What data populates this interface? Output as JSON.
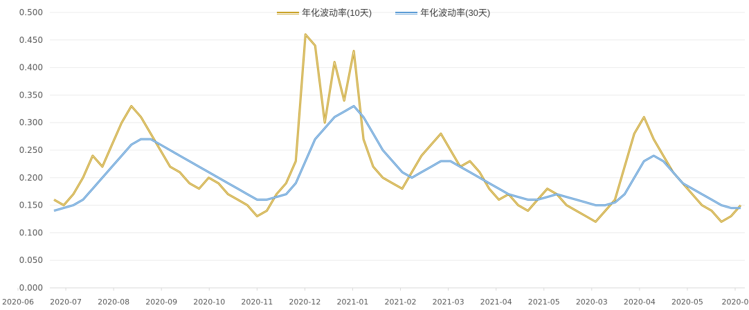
{
  "chart_data": {
    "type": "line",
    "title": "",
    "xlabel": "",
    "ylabel": "",
    "ylim": [
      0,
      0.5
    ],
    "y_ticks": [
      "0.000",
      "0.050",
      "0.100",
      "0.150",
      "0.200",
      "0.250",
      "0.300",
      "0.350",
      "0.400",
      "0.450",
      "0.500"
    ],
    "x_ticks": [
      "2020-06",
      "2020-07",
      "2020-08",
      "2020-09",
      "2020-10",
      "2020-11",
      "2020-12",
      "2021-01",
      "2021-02",
      "2021-03",
      "2021-04",
      "2021-05",
      "2020-03",
      "2020-04",
      "2020-05",
      "2020-0"
    ],
    "legend_position": "top-center",
    "series": [
      {
        "name": "年化波动率(10天)",
        "color": "#C9A227",
        "values": [
          0.16,
          0.15,
          0.17,
          0.2,
          0.24,
          0.22,
          0.26,
          0.3,
          0.33,
          0.31,
          0.28,
          0.25,
          0.22,
          0.21,
          0.19,
          0.18,
          0.2,
          0.19,
          0.17,
          0.16,
          0.15,
          0.13,
          0.14,
          0.17,
          0.19,
          0.23,
          0.46,
          0.44,
          0.3,
          0.41,
          0.34,
          0.43,
          0.27,
          0.22,
          0.2,
          0.19,
          0.18,
          0.21,
          0.24,
          0.26,
          0.28,
          0.25,
          0.22,
          0.23,
          0.21,
          0.18,
          0.16,
          0.17,
          0.15,
          0.14,
          0.16,
          0.18,
          0.17,
          0.15,
          0.14,
          0.13,
          0.12,
          0.14,
          0.16,
          0.22,
          0.28,
          0.31,
          0.27,
          0.24,
          0.21,
          0.19,
          0.17,
          0.15,
          0.14,
          0.12,
          0.13,
          0.15
        ]
      },
      {
        "name": "年化波动率(30天)",
        "color": "#5B9BD5",
        "values": [
          0.14,
          0.145,
          0.15,
          0.16,
          0.18,
          0.2,
          0.22,
          0.24,
          0.26,
          0.27,
          0.27,
          0.26,
          0.25,
          0.24,
          0.23,
          0.22,
          0.21,
          0.2,
          0.19,
          0.18,
          0.17,
          0.16,
          0.16,
          0.165,
          0.17,
          0.19,
          0.23,
          0.27,
          0.29,
          0.31,
          0.32,
          0.33,
          0.31,
          0.28,
          0.25,
          0.23,
          0.21,
          0.2,
          0.21,
          0.22,
          0.23,
          0.23,
          0.22,
          0.21,
          0.2,
          0.19,
          0.18,
          0.17,
          0.165,
          0.16,
          0.16,
          0.165,
          0.17,
          0.165,
          0.16,
          0.155,
          0.15,
          0.15,
          0.155,
          0.17,
          0.2,
          0.23,
          0.24,
          0.23,
          0.21,
          0.19,
          0.18,
          0.17,
          0.16,
          0.15,
          0.145,
          0.145
        ]
      }
    ]
  }
}
